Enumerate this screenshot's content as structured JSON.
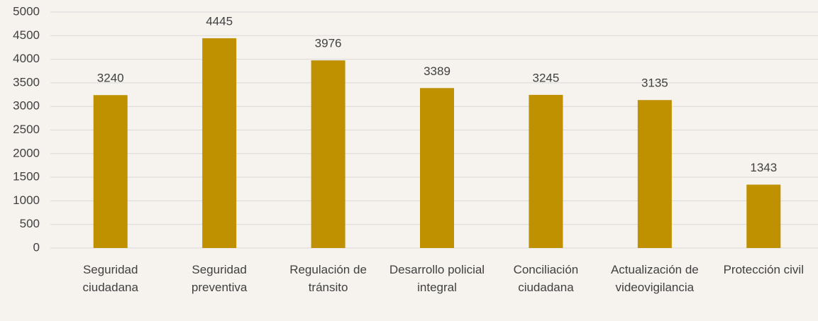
{
  "chart_data": {
    "type": "bar",
    "categories": [
      "Seguridad ciudadana",
      "Seguridad preventiva",
      "Regulación de tránsito",
      "Desarrollo policial integral",
      "Conciliación ciudadana",
      "Actualización de videovigilancia",
      "Protección civil"
    ],
    "values": [
      3240,
      4445,
      3976,
      3389,
      3245,
      3135,
      1343
    ],
    "color": "#bf9000",
    "ylim": [
      0,
      5000
    ],
    "yticks": [
      0,
      500,
      1000,
      1500,
      2000,
      2500,
      3000,
      3500,
      4000,
      4500,
      5000
    ],
    "grid": true
  }
}
